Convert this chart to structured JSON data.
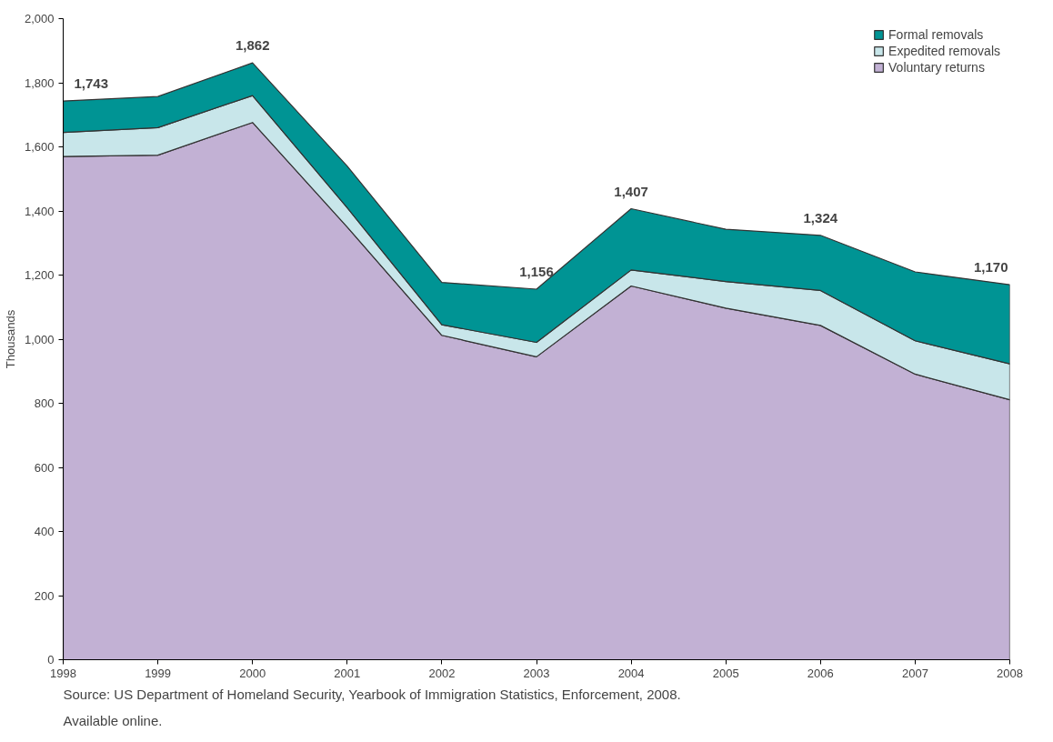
{
  "chart_data": {
    "type": "area",
    "stacked": true,
    "ylabel": "Thousands",
    "x": [
      1998,
      1999,
      2000,
      2001,
      2002,
      2003,
      2004,
      2005,
      2006,
      2007,
      2008
    ],
    "series": [
      {
        "name": "Voluntary returns",
        "color": "#c2b1d4",
        "values": [
          1570,
          1574,
          1676,
          1350,
          1012,
          945,
          1166,
          1097,
          1043,
          891,
          811
        ]
      },
      {
        "name": "Expedited removals",
        "color": "#c8e6ea",
        "values": [
          75,
          86,
          84,
          60,
          33,
          45,
          50,
          83,
          109,
          104,
          112
        ]
      },
      {
        "name": "Formal removals",
        "color": "#009494",
        "values": [
          98,
          97,
          102,
          130,
          132,
          166,
          191,
          163,
          172,
          215,
          247
        ]
      }
    ],
    "xlim": [
      1998,
      2008
    ],
    "xticks": [
      1998,
      1999,
      2000,
      2001,
      2002,
      2003,
      2004,
      2005,
      2006,
      2007,
      2008
    ],
    "ylim": [
      0,
      2000
    ],
    "yticks": [
      0,
      200,
      400,
      600,
      800,
      {
        "value": 1000,
        "label": "1,000"
      },
      {
        "value": 1200,
        "label": "1,200"
      },
      {
        "value": 1400,
        "label": "1,400"
      },
      {
        "value": 1600,
        "label": "1,600"
      },
      {
        "value": 1800,
        "label": "1,800"
      },
      {
        "value": 2000,
        "label": "2,000"
      }
    ],
    "grid": false,
    "legend": "top right",
    "annotations": [
      {
        "text": "1,743",
        "x": 1998,
        "y": 1743
      },
      {
        "text": "1,862",
        "x": 2000,
        "y": 1862
      },
      {
        "text": "1,156",
        "x": 2003,
        "y": 1156
      },
      {
        "text": "1,407",
        "x": 2004,
        "y": 1407
      },
      {
        "text": "1,324",
        "x": 2006,
        "y": 1324
      },
      {
        "text": "1,170",
        "x": 2008,
        "y": 1170
      },
      "Source: US Department of Homeland Security, Yearbook of Immigration Statistics, Enforcement, 2008.",
      "Available online."
    ]
  }
}
